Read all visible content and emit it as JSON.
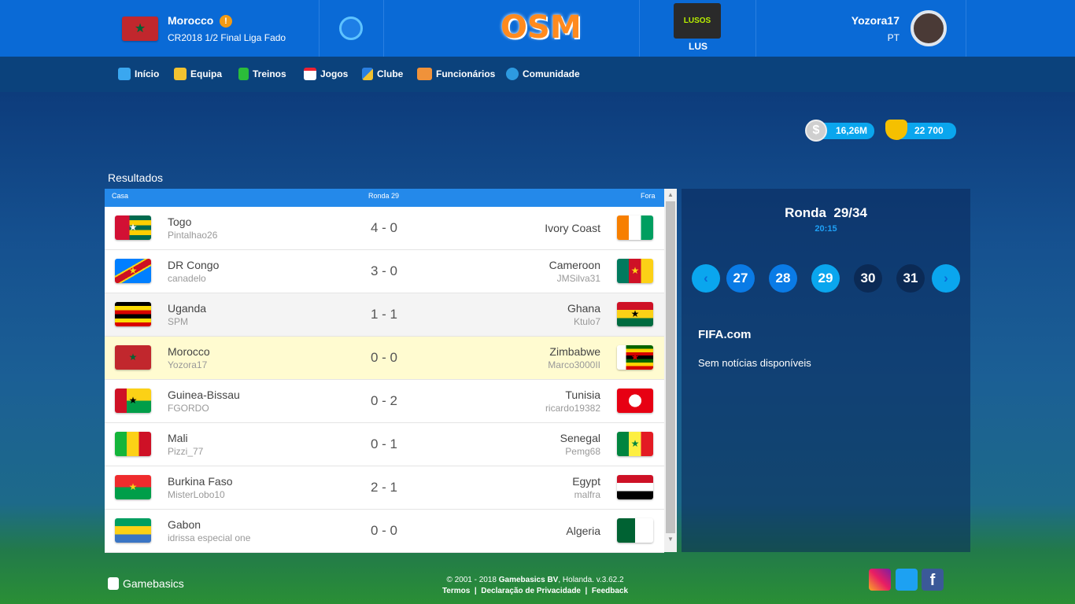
{
  "header": {
    "team_name": "Morocco",
    "team_flag": "morocco-flag",
    "competition": "CR2018 1/2 Final Liga Fado",
    "logo": "OSM",
    "club_tag": "LUS",
    "club_logo_text": "LUSOS",
    "username": "Yozora17",
    "country": "PT"
  },
  "nav": {
    "items": [
      {
        "label": "Início",
        "icon": "home-icon"
      },
      {
        "label": "Equipa",
        "icon": "shirt-icon"
      },
      {
        "label": "Treinos",
        "icon": "training-pitch-icon"
      },
      {
        "label": "Jogos",
        "icon": "calendar-icon"
      },
      {
        "label": "Clube",
        "icon": "shield-icon"
      },
      {
        "label": "Funcionários",
        "icon": "staff-card-icon"
      },
      {
        "label": "Comunidade",
        "icon": "globe-icon"
      }
    ],
    "money": "16,26M",
    "credits": "22 700"
  },
  "results": {
    "title": "Resultados",
    "col_home": "Casa",
    "col_round": "Ronda 29",
    "col_away": "Fora",
    "rows": [
      {
        "home": "Togo",
        "home_manager": "Pintalhao26",
        "score": "4 - 0",
        "away": "Ivory Coast",
        "away_manager": "",
        "hf": "togo",
        "af": "ivory"
      },
      {
        "home": "DR Congo",
        "home_manager": "canadelo",
        "score": "3 - 0",
        "away": "Cameroon",
        "away_manager": "JMSilva31",
        "hf": "drc",
        "af": "cameroon"
      },
      {
        "home": "Uganda",
        "home_manager": "SPM",
        "score": "1 - 1",
        "away": "Ghana",
        "away_manager": "Ktulo7",
        "hf": "uganda",
        "af": "ghana"
      },
      {
        "home": "Morocco",
        "home_manager": "Yozora17",
        "score": "0 - 0",
        "away": "Zimbabwe",
        "away_manager": "Marco3000II",
        "hf": "morocco",
        "af": "zimbabwe",
        "highlight": true
      },
      {
        "home": "Guinea-Bissau",
        "home_manager": "FGORDO",
        "score": "0 - 2",
        "away": "Tunisia",
        "away_manager": "ricardo19382",
        "hf": "gbissau",
        "af": "tunisia"
      },
      {
        "home": "Mali",
        "home_manager": "Pizzi_77",
        "score": "0 - 1",
        "away": "Senegal",
        "away_manager": "Pemg68",
        "hf": "mali",
        "af": "senegal"
      },
      {
        "home": "Burkina Faso",
        "home_manager": "MisterLobo10",
        "score": "2 - 1",
        "away": "Egypt",
        "away_manager": "malfra",
        "hf": "burkina",
        "af": "egypt"
      },
      {
        "home": "Gabon",
        "home_manager": "idrissa especial one",
        "score": "0 - 0",
        "away": "Algeria",
        "away_manager": "",
        "hf": "gabon",
        "af": "algeria"
      }
    ]
  },
  "round": {
    "title": "Ronda  29/34",
    "time": "20:15",
    "buttons": [
      "27",
      "28",
      "29",
      "30",
      "31"
    ],
    "current": "29"
  },
  "news": {
    "title": "FIFA.com",
    "empty": "Sem notícias disponíveis"
  },
  "footer": {
    "brand": "Gamebasics",
    "copyright_pre": "© 2001 - 2018 ",
    "company": "Gamebasics BV",
    "copyright_post": ", Holanda. v.3.62.2",
    "links": [
      "Termos",
      "Declaração de Privacidade",
      "Feedback"
    ],
    "social": [
      "instagram-icon",
      "twitter-icon",
      "facebook-icon"
    ]
  },
  "colors": {
    "header": "#0a6ad6",
    "nav": "#0b427c",
    "table_header": "#2489ea",
    "highlight": "#fffbd0",
    "round_active": "#0aa6ee"
  }
}
